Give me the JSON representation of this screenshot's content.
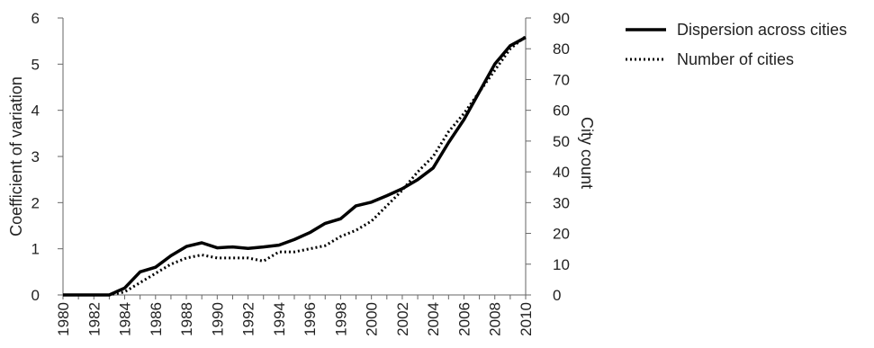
{
  "chart_data": {
    "type": "line",
    "x": [
      1980,
      1981,
      1982,
      1983,
      1984,
      1985,
      1986,
      1987,
      1988,
      1989,
      1990,
      1991,
      1992,
      1993,
      1994,
      1995,
      1996,
      1997,
      1998,
      1999,
      2000,
      2001,
      2002,
      2003,
      2004,
      2005,
      2006,
      2007,
      2008,
      2009,
      2010
    ],
    "x_tick_labels": [
      "1980",
      "1982",
      "1984",
      "1986",
      "1988",
      "1990",
      "1992",
      "1994",
      "1996",
      "1998",
      "2000",
      "2002",
      "2004",
      "2006",
      "2008",
      "2010"
    ],
    "xlim": [
      1980,
      2010
    ],
    "series": [
      {
        "name": "Dispersion across cities",
        "axis": "left",
        "style": "solid",
        "values": [
          0,
          0,
          0,
          0,
          0.15,
          0.5,
          0.6,
          0.85,
          1.05,
          1.13,
          1.02,
          1.04,
          1.01,
          1.04,
          1.08,
          1.2,
          1.35,
          1.55,
          1.65,
          1.93,
          2.01,
          2.15,
          2.3,
          2.5,
          2.75,
          3.3,
          3.8,
          4.4,
          5.0,
          5.4,
          5.58
        ]
      },
      {
        "name": "Number of cities",
        "axis": "right",
        "style": "dotted",
        "values": [
          0,
          0,
          0,
          0,
          1,
          4,
          7,
          10,
          12,
          13,
          12,
          12,
          12,
          11,
          14,
          14,
          15,
          16,
          19,
          21,
          24,
          29,
          34,
          40,
          45,
          53,
          59,
          66,
          73,
          80,
          84
        ]
      }
    ],
    "y_left": {
      "label": "Coefficient of variation",
      "ylim": [
        0,
        6
      ],
      "ticks": [
        "0",
        "1",
        "2",
        "3",
        "4",
        "5",
        "6"
      ]
    },
    "y_right": {
      "label": "City count",
      "ylim": [
        0,
        90
      ],
      "ticks": [
        "0",
        "10",
        "20",
        "30",
        "40",
        "50",
        "60",
        "70",
        "80",
        "90"
      ]
    },
    "grid": false,
    "legend": "top-right outside"
  }
}
